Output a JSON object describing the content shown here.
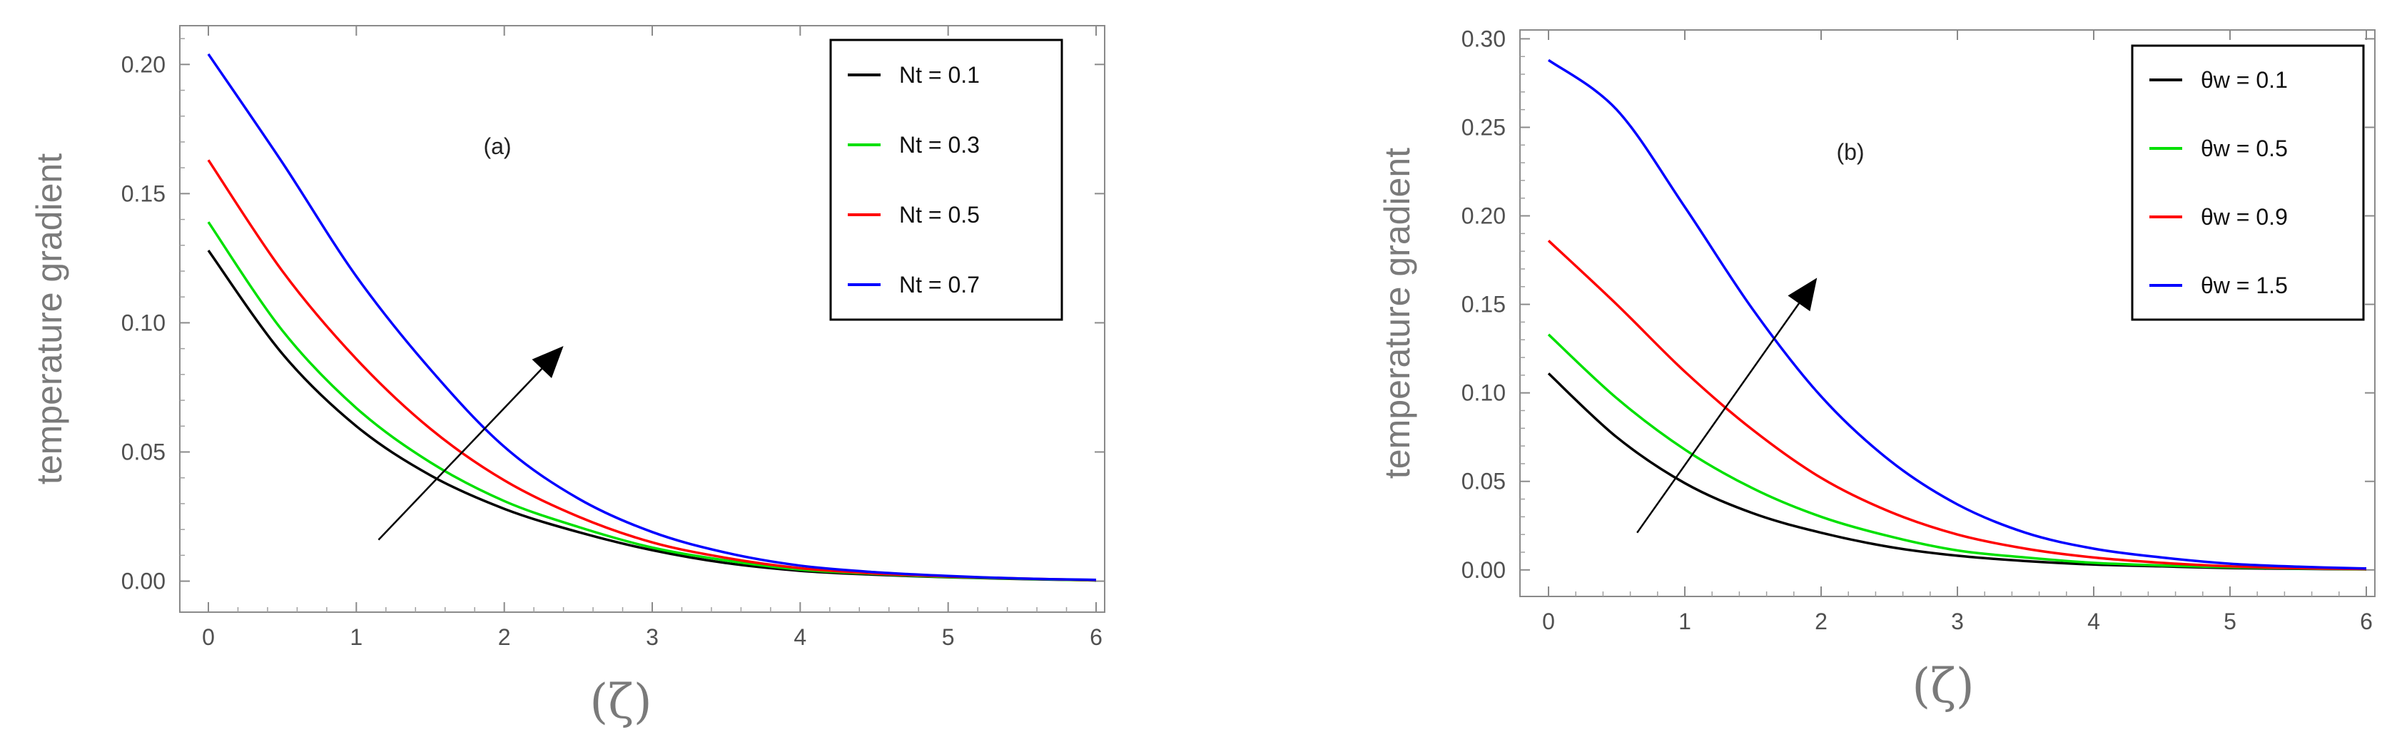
{
  "chart_data": [
    {
      "type": "line",
      "panel_label": "(a)",
      "xlabel": "(ζ)",
      "ylabel": "temperature gradient",
      "xlim": [
        0,
        6
      ],
      "ylim": [
        -0.012,
        0.215
      ],
      "xticks": [
        "0",
        "1",
        "2",
        "3",
        "4",
        "5",
        "6"
      ],
      "yticks": [
        "0.00",
        "0.05",
        "0.10",
        "0.15",
        "0.20"
      ],
      "legend_position": "top-right",
      "x": [
        0,
        0.5,
        1,
        1.5,
        2,
        2.5,
        3,
        3.5,
        4,
        4.5,
        5,
        5.5,
        6
      ],
      "series": [
        {
          "name": "Nt =  0.1",
          "color": "#000000",
          "values": [
            0.128,
            0.088,
            0.06,
            0.041,
            0.028,
            0.019,
            0.012,
            0.007,
            0.004,
            0.0025,
            0.0015,
            0.0008,
            0.0003
          ]
        },
        {
          "name": "Nt =  0.3",
          "color": "#00e000",
          "values": [
            0.139,
            0.097,
            0.067,
            0.046,
            0.031,
            0.021,
            0.013,
            0.008,
            0.0045,
            0.0028,
            0.0016,
            0.0009,
            0.0003
          ]
        },
        {
          "name": "Nt =  0.5",
          "color": "#ff0000",
          "values": [
            0.163,
            0.12,
            0.086,
            0.059,
            0.039,
            0.025,
            0.015,
            0.009,
            0.005,
            0.003,
            0.0018,
            0.001,
            0.0004
          ]
        },
        {
          "name": "Nt =  0.7",
          "color": "#0000ff",
          "values": [
            0.204,
            0.162,
            0.118,
            0.082,
            0.052,
            0.032,
            0.019,
            0.011,
            0.006,
            0.0035,
            0.002,
            0.001,
            0.0005
          ]
        }
      ],
      "arrow": {
        "from": [
          1.15,
          0.016
        ],
        "to": [
          2.4,
          0.091
        ]
      }
    },
    {
      "type": "line",
      "panel_label": "(b)",
      "xlabel": "(ζ)",
      "ylabel": "temperature gradient",
      "xlim": [
        0,
        6
      ],
      "ylim": [
        -0.015,
        0.305
      ],
      "xticks": [
        "0",
        "1",
        "2",
        "3",
        "4",
        "5",
        "6"
      ],
      "yticks": [
        "0.00",
        "0.05",
        "0.10",
        "0.15",
        "0.20",
        "0.25",
        "0.30"
      ],
      "legend_position": "top-right",
      "x": [
        0,
        0.5,
        1,
        1.5,
        2,
        2.5,
        3,
        3.5,
        4,
        4.5,
        5,
        5.5,
        6
      ],
      "series": [
        {
          "name": "θw =  0.1",
          "color": "#000000",
          "values": [
            0.111,
            0.075,
            0.049,
            0.032,
            0.021,
            0.013,
            0.008,
            0.005,
            0.003,
            0.002,
            0.001,
            0.0006,
            0.0003
          ]
        },
        {
          "name": "θw =  0.5",
          "color": "#00e000",
          "values": [
            0.133,
            0.097,
            0.068,
            0.046,
            0.03,
            0.019,
            0.011,
            0.007,
            0.004,
            0.0025,
            0.0015,
            0.0008,
            0.0004
          ]
        },
        {
          "name": "θw =  0.9",
          "color": "#ff0000",
          "values": [
            0.186,
            0.15,
            0.112,
            0.079,
            0.052,
            0.033,
            0.02,
            0.012,
            0.007,
            0.004,
            0.002,
            0.001,
            0.0005
          ]
        },
        {
          "name": "θw =  1.5",
          "color": "#0000ff",
          "values": [
            0.288,
            0.26,
            0.205,
            0.147,
            0.098,
            0.062,
            0.037,
            0.021,
            0.012,
            0.007,
            0.0035,
            0.0018,
            0.0008
          ]
        }
      ],
      "arrow": {
        "from": [
          0.65,
          0.021
        ],
        "to": [
          1.97,
          0.165
        ]
      }
    }
  ]
}
